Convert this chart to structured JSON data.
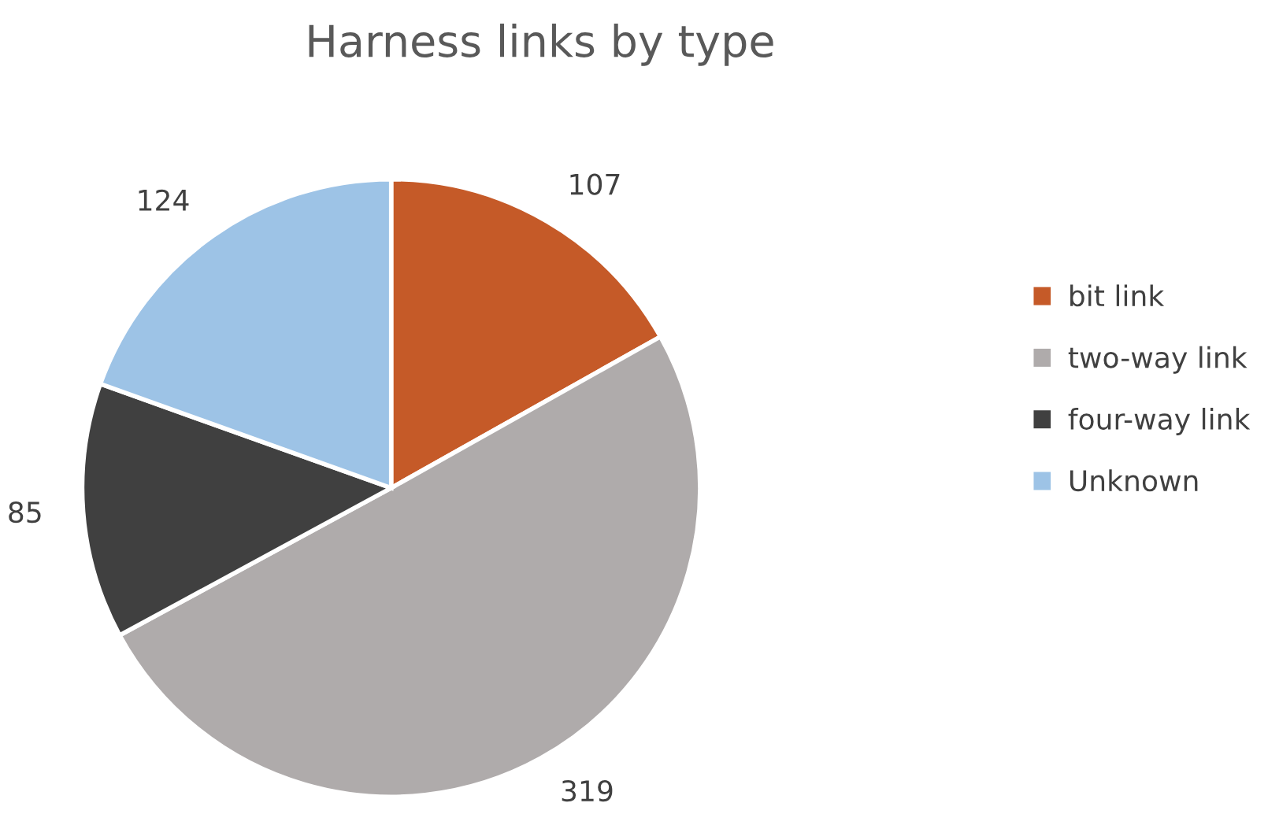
{
  "chart_data": {
    "type": "pie",
    "title": "Harness links by type",
    "categories": [
      "bit link",
      "two-way link",
      "four-way link",
      "Unknown"
    ],
    "values": [
      107,
      319,
      85,
      124
    ],
    "colors": [
      "#c55a28",
      "#afabab",
      "#404040",
      "#9dc3e6"
    ],
    "data_labels": true,
    "legend": "right"
  }
}
